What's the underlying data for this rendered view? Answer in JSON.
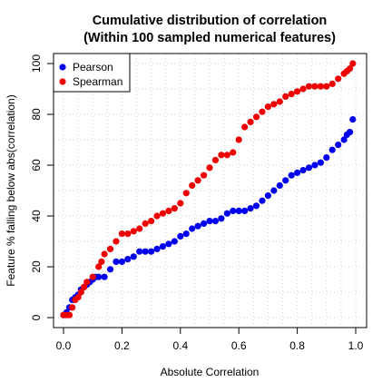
{
  "chart_data": {
    "type": "scatter",
    "title": "Cumulative distribution of correlation",
    "subtitle": "(Within 100 sampled numerical features)",
    "xlabel": "Absolute Correlation",
    "ylabel": "Feature % falling below abs(correlation)",
    "xlim": [
      0,
      1
    ],
    "ylim": [
      0,
      100
    ],
    "x_ticks": [
      0,
      0.2,
      0.4,
      0.6,
      0.8,
      1
    ],
    "x_tick_labels": [
      "0.0",
      "0.2",
      "0.4",
      "0.6",
      "0.8",
      "1.0"
    ],
    "y_ticks": [
      0,
      20,
      40,
      60,
      80,
      100
    ],
    "y_tick_labels": [
      "0",
      "20",
      "40",
      "60",
      "80",
      "100"
    ],
    "grid": true,
    "legend_position": "top-left",
    "series": [
      {
        "name": "Pearson",
        "color": "#0000EE",
        "points": [
          [
            0.0,
            1
          ],
          [
            0.01,
            2
          ],
          [
            0.02,
            4
          ],
          [
            0.03,
            7
          ],
          [
            0.04,
            8
          ],
          [
            0.05,
            9
          ],
          [
            0.06,
            11
          ],
          [
            0.07,
            12
          ],
          [
            0.08,
            13
          ],
          [
            0.09,
            14
          ],
          [
            0.1,
            15
          ],
          [
            0.11,
            16
          ],
          [
            0.12,
            16
          ],
          [
            0.14,
            16
          ],
          [
            0.16,
            19
          ],
          [
            0.18,
            22
          ],
          [
            0.2,
            22
          ],
          [
            0.22,
            23
          ],
          [
            0.24,
            24
          ],
          [
            0.26,
            26
          ],
          [
            0.28,
            26
          ],
          [
            0.3,
            26
          ],
          [
            0.32,
            27
          ],
          [
            0.34,
            28
          ],
          [
            0.36,
            29
          ],
          [
            0.38,
            30
          ],
          [
            0.4,
            32
          ],
          [
            0.42,
            33
          ],
          [
            0.44,
            35
          ],
          [
            0.46,
            36
          ],
          [
            0.48,
            37
          ],
          [
            0.5,
            38
          ],
          [
            0.52,
            38
          ],
          [
            0.54,
            39
          ],
          [
            0.56,
            41
          ],
          [
            0.58,
            42
          ],
          [
            0.6,
            42
          ],
          [
            0.62,
            42
          ],
          [
            0.64,
            43
          ],
          [
            0.66,
            44
          ],
          [
            0.68,
            46
          ],
          [
            0.7,
            48
          ],
          [
            0.72,
            50
          ],
          [
            0.74,
            52
          ],
          [
            0.76,
            54
          ],
          [
            0.78,
            56
          ],
          [
            0.8,
            57
          ],
          [
            0.82,
            58
          ],
          [
            0.84,
            59
          ],
          [
            0.86,
            60
          ],
          [
            0.88,
            61
          ],
          [
            0.9,
            63
          ],
          [
            0.92,
            66
          ],
          [
            0.94,
            68
          ],
          [
            0.96,
            70
          ],
          [
            0.97,
            72
          ],
          [
            0.98,
            73
          ],
          [
            0.99,
            78
          ]
        ]
      },
      {
        "name": "Spearman",
        "color": "#EE0000",
        "points": [
          [
            0.0,
            1
          ],
          [
            0.01,
            1
          ],
          [
            0.02,
            1
          ],
          [
            0.03,
            4
          ],
          [
            0.04,
            7
          ],
          [
            0.05,
            8
          ],
          [
            0.06,
            10
          ],
          [
            0.07,
            12
          ],
          [
            0.08,
            14
          ],
          [
            0.1,
            16
          ],
          [
            0.12,
            20
          ],
          [
            0.13,
            22
          ],
          [
            0.14,
            25
          ],
          [
            0.16,
            27
          ],
          [
            0.18,
            30
          ],
          [
            0.2,
            33
          ],
          [
            0.22,
            33
          ],
          [
            0.24,
            34
          ],
          [
            0.26,
            35
          ],
          [
            0.28,
            37
          ],
          [
            0.3,
            38
          ],
          [
            0.32,
            40
          ],
          [
            0.34,
            41
          ],
          [
            0.36,
            42
          ],
          [
            0.38,
            43
          ],
          [
            0.4,
            45
          ],
          [
            0.42,
            49
          ],
          [
            0.44,
            52
          ],
          [
            0.46,
            54
          ],
          [
            0.48,
            56
          ],
          [
            0.5,
            59
          ],
          [
            0.52,
            62
          ],
          [
            0.54,
            64
          ],
          [
            0.56,
            64
          ],
          [
            0.58,
            65
          ],
          [
            0.6,
            70
          ],
          [
            0.62,
            75
          ],
          [
            0.64,
            77
          ],
          [
            0.66,
            79
          ],
          [
            0.68,
            81
          ],
          [
            0.7,
            83
          ],
          [
            0.72,
            84
          ],
          [
            0.74,
            85
          ],
          [
            0.76,
            87
          ],
          [
            0.78,
            88
          ],
          [
            0.8,
            89
          ],
          [
            0.82,
            90
          ],
          [
            0.84,
            91
          ],
          [
            0.86,
            91
          ],
          [
            0.88,
            91
          ],
          [
            0.9,
            91
          ],
          [
            0.92,
            92
          ],
          [
            0.94,
            94
          ],
          [
            0.96,
            96
          ],
          [
            0.97,
            97
          ],
          [
            0.98,
            98
          ],
          [
            0.99,
            100
          ]
        ]
      }
    ]
  }
}
